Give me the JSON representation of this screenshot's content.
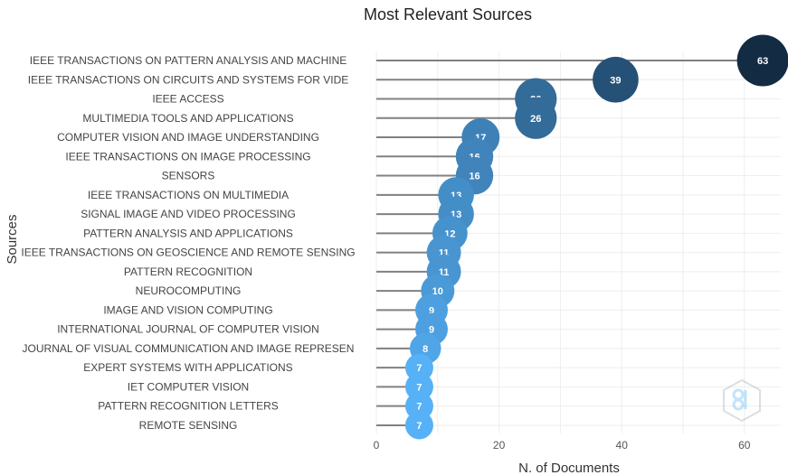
{
  "chart_data": {
    "type": "scatter",
    "title": "Most Relevant Sources",
    "xlabel": "N. of Documents",
    "ylabel": "Sources",
    "xlim": [
      0,
      66
    ],
    "xticks": [
      0,
      20,
      40,
      60
    ],
    "grid": true,
    "categories": [
      "IEEE TRANSACTIONS ON PATTERN ANALYSIS AND MACHINE",
      "IEEE TRANSACTIONS ON CIRCUITS AND SYSTEMS FOR VIDE",
      "IEEE ACCESS",
      "MULTIMEDIA TOOLS AND APPLICATIONS",
      "COMPUTER VISION AND IMAGE UNDERSTANDING",
      "IEEE TRANSACTIONS ON IMAGE PROCESSING",
      "SENSORS",
      "IEEE TRANSACTIONS ON MULTIMEDIA",
      "SIGNAL IMAGE AND VIDEO PROCESSING",
      "PATTERN ANALYSIS AND APPLICATIONS",
      "IEEE TRANSACTIONS ON GEOSCIENCE AND REMOTE SENSING",
      "PATTERN RECOGNITION",
      "NEUROCOMPUTING",
      "IMAGE AND VISION COMPUTING",
      "INTERNATIONAL JOURNAL OF COMPUTER VISION",
      "JOURNAL OF VISUAL COMMUNICATION AND IMAGE REPRESEN",
      "EXPERT SYSTEMS WITH APPLICATIONS",
      "IET COMPUTER VISION",
      "PATTERN RECOGNITION LETTERS",
      "REMOTE SENSING"
    ],
    "values": [
      63,
      39,
      26,
      26,
      17,
      16,
      16,
      13,
      13,
      12,
      11,
      11,
      10,
      9,
      9,
      8,
      7,
      7,
      7,
      7
    ],
    "color_scale": {
      "low": "#56B1F7",
      "high": "#132B43"
    }
  }
}
